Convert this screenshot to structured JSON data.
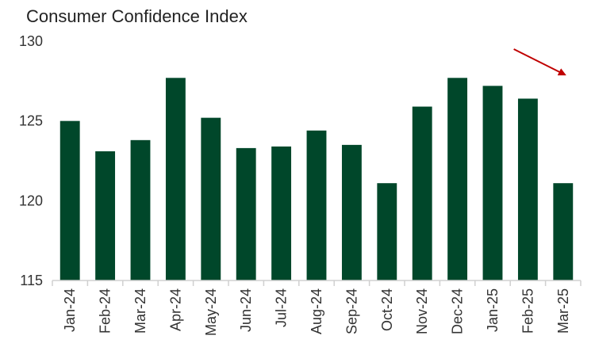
{
  "chart_data": {
    "type": "bar",
    "title": "Consumer Confidence Index",
    "xlabel": "",
    "ylabel": "",
    "categories": [
      "Jan-24",
      "Feb-24",
      "Mar-24",
      "Apr-24",
      "May-24",
      "Jun-24",
      "Jul-24",
      "Aug-24",
      "Sep-24",
      "Oct-24",
      "Nov-24",
      "Dec-24",
      "Jan-25",
      "Feb-25",
      "Mar-25"
    ],
    "values": [
      125.0,
      123.1,
      123.8,
      127.7,
      125.2,
      123.3,
      123.4,
      124.4,
      123.5,
      121.1,
      125.9,
      127.7,
      127.2,
      126.4,
      121.1
    ],
    "ylim": [
      115,
      130
    ],
    "yticks": [
      115,
      120,
      125,
      130
    ],
    "grid": false,
    "legend": "none",
    "bar_color": "#00472a",
    "annotation": {
      "type": "arrow",
      "color": "#c00000",
      "from_category": "Feb-25",
      "to_category": "Mar-25",
      "direction": "down"
    }
  }
}
